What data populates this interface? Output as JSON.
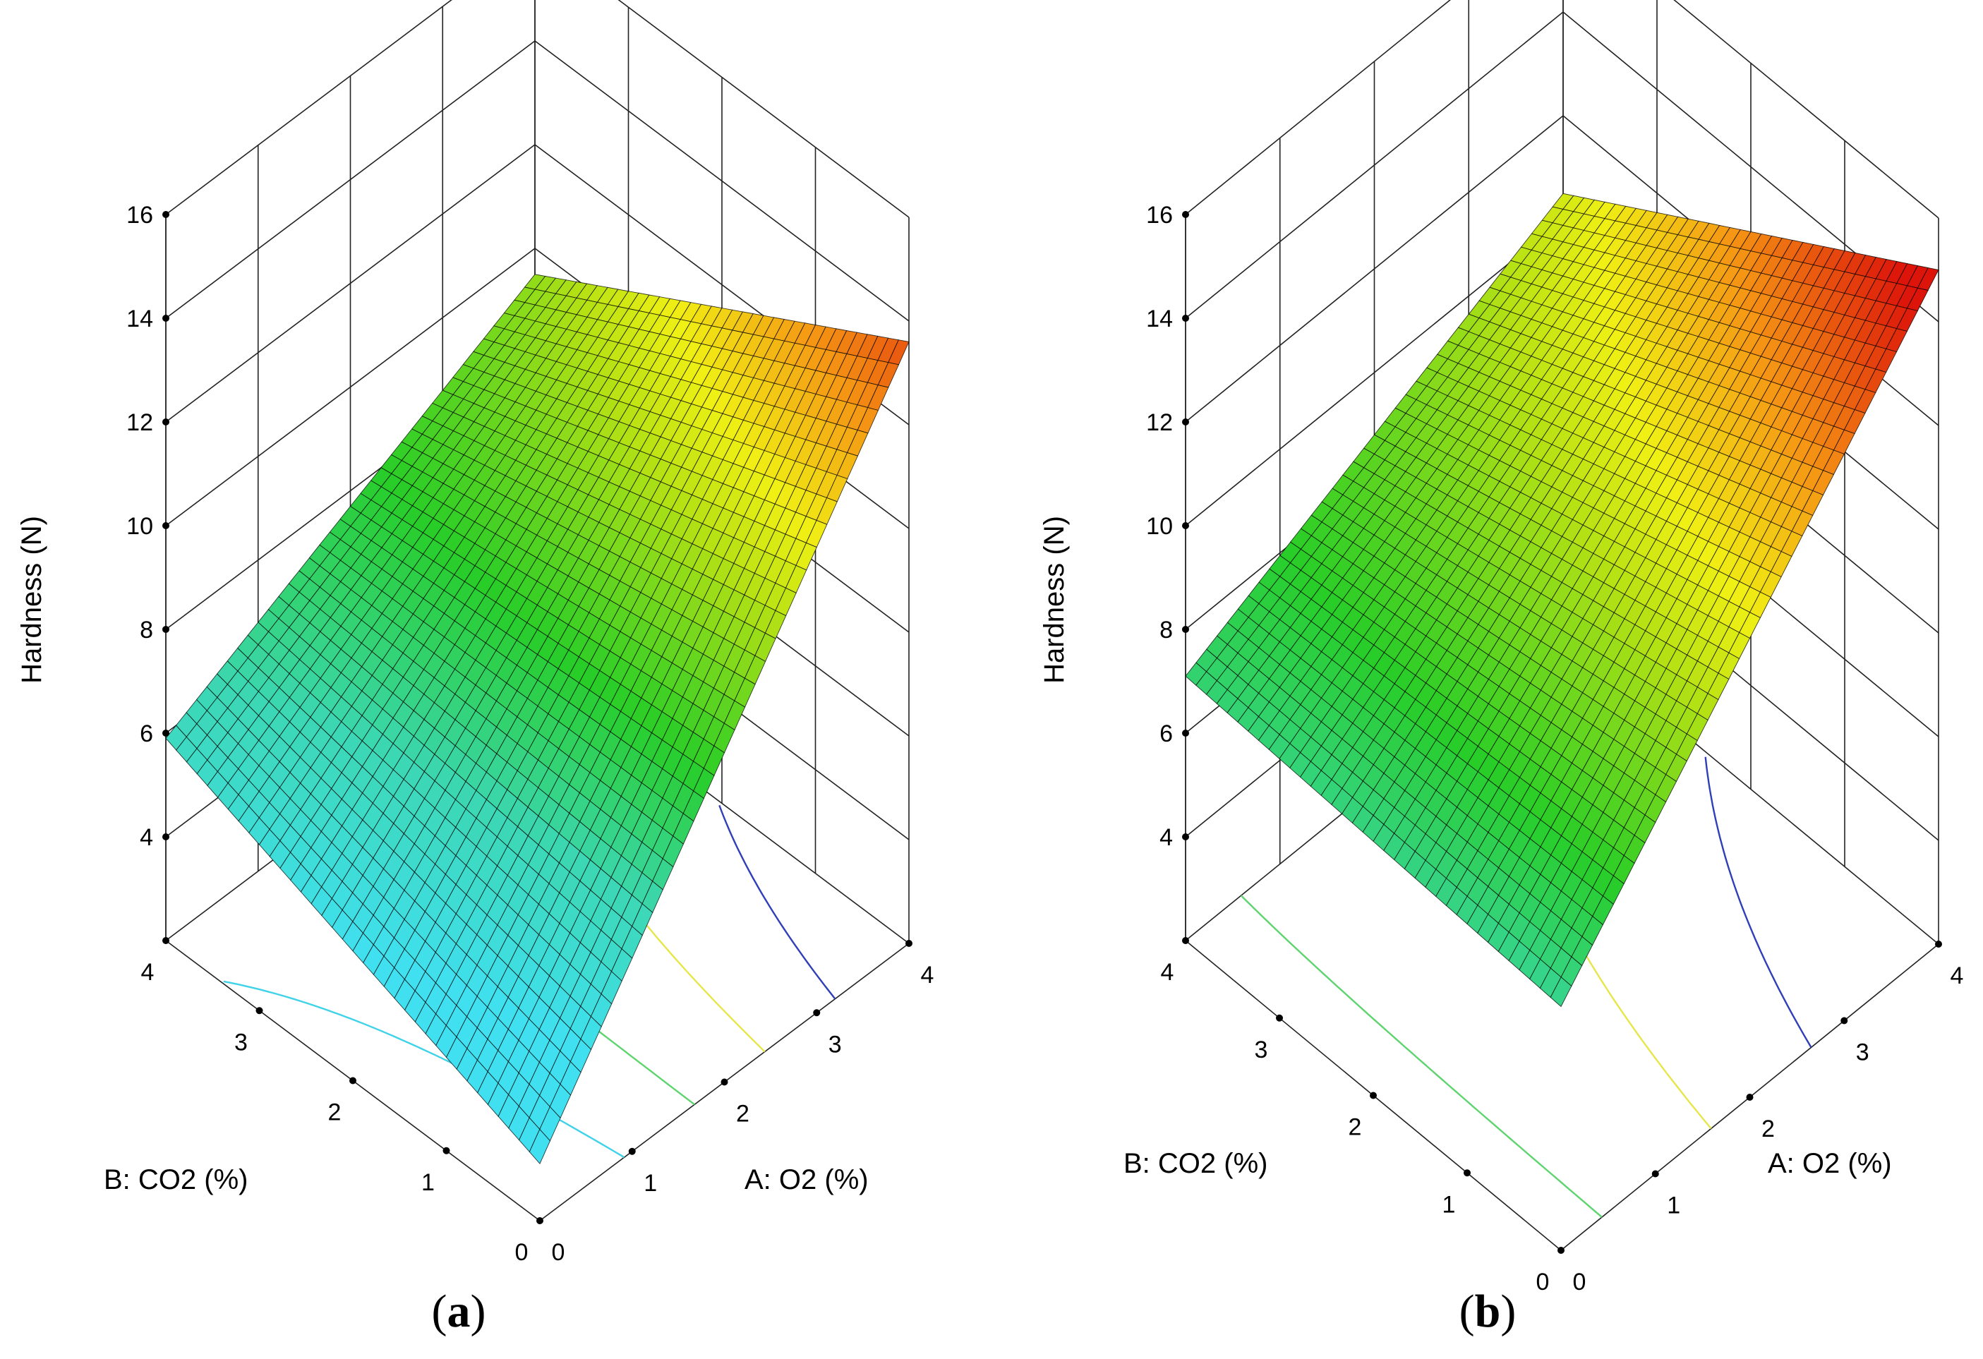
{
  "figure": {
    "panels": [
      "(a)",
      "(b)"
    ]
  },
  "chart_data": [
    {
      "type": "surface3d",
      "panel_label": "(a)",
      "panel_letter": "a",
      "zlabel": "Hardness (N)",
      "xlabel": "A: O2 (%)",
      "ylabel": "B: CO2 (%)",
      "x_ticks": [
        "0",
        "1",
        "2",
        "3",
        "4"
      ],
      "y_ticks": [
        "0",
        "1",
        "2",
        "3",
        "4"
      ],
      "z_ticks": [
        "4",
        "6",
        "8",
        "10",
        "12",
        "14",
        "16"
      ],
      "xlim": [
        0,
        4
      ],
      "ylim": [
        0,
        4
      ],
      "zlim": [
        2,
        16
      ],
      "corner_values": {
        "A0_B0": 3.1,
        "A4_B0": 13.6,
        "A0_B4": 5.9,
        "A4_B4": 9.5
      },
      "contour_levels": [
        {
          "level": 5.5,
          "color": "#3fd2e8"
        },
        {
          "level": 7.5,
          "color": "#5ed46e"
        },
        {
          "level": 9.5,
          "color": "#e6e64a"
        },
        {
          "level": 11.5,
          "color": "#2f3fb8"
        }
      ]
    },
    {
      "type": "surface3d",
      "panel_label": "(b)",
      "panel_letter": "b",
      "zlabel": "Hardness (N)",
      "xlabel": "A: O2 (%)",
      "ylabel": "B: CO2 (%)",
      "x_ticks": [
        "0",
        "1",
        "2",
        "3",
        "4"
      ],
      "y_ticks": [
        "0",
        "1",
        "2",
        "3",
        "4"
      ],
      "z_ticks": [
        "4",
        "6",
        "8",
        "10",
        "12",
        "14",
        "16"
      ],
      "xlim": [
        0,
        4
      ],
      "ylim": [
        0,
        4
      ],
      "zlim": [
        2,
        16
      ],
      "corner_values": {
        "A0_B0": 6.7,
        "A4_B0": 15.0,
        "A0_B4": 7.1,
        "A4_B4": 10.5
      },
      "contour_levels": [
        {
          "level": 7.6,
          "color": "#5ed46e"
        },
        {
          "level": 10.0,
          "color": "#e6e64a"
        },
        {
          "level": 12.2,
          "color": "#2f3fb8"
        }
      ]
    }
  ]
}
